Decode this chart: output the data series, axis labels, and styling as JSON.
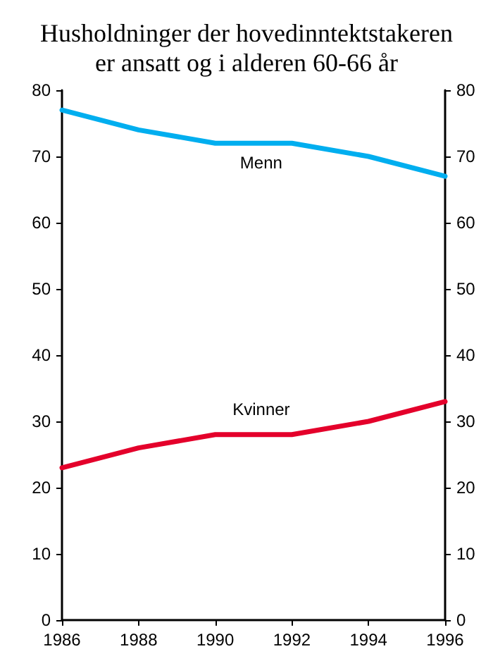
{
  "chart_data": {
    "type": "line",
    "title": "Husholdninger der hovedinntektstakeren\ner ansatt og i alderen 60-66 år",
    "x": [
      1986,
      1988,
      1990,
      1992,
      1994,
      1996
    ],
    "series": [
      {
        "name": "Menn",
        "color": "#00aeef",
        "values": [
          77,
          74,
          72,
          72,
          70,
          67
        ]
      },
      {
        "name": "Kvinner",
        "color": "#e4002b",
        "values": [
          23,
          26,
          28,
          28,
          30,
          33
        ]
      }
    ],
    "xlim": [
      1986,
      1996
    ],
    "xticks": [
      1986,
      1988,
      1990,
      1992,
      1994,
      1996
    ],
    "ylim": [
      0,
      80
    ],
    "yticks": [
      0,
      10,
      20,
      30,
      40,
      50,
      60,
      70,
      80
    ],
    "y2lim": [
      0,
      80
    ],
    "y2ticks": [
      0,
      10,
      20,
      30,
      40,
      50,
      60,
      70,
      80
    ],
    "grid": false,
    "legend": false,
    "marker": "none",
    "line_style": "solid"
  }
}
